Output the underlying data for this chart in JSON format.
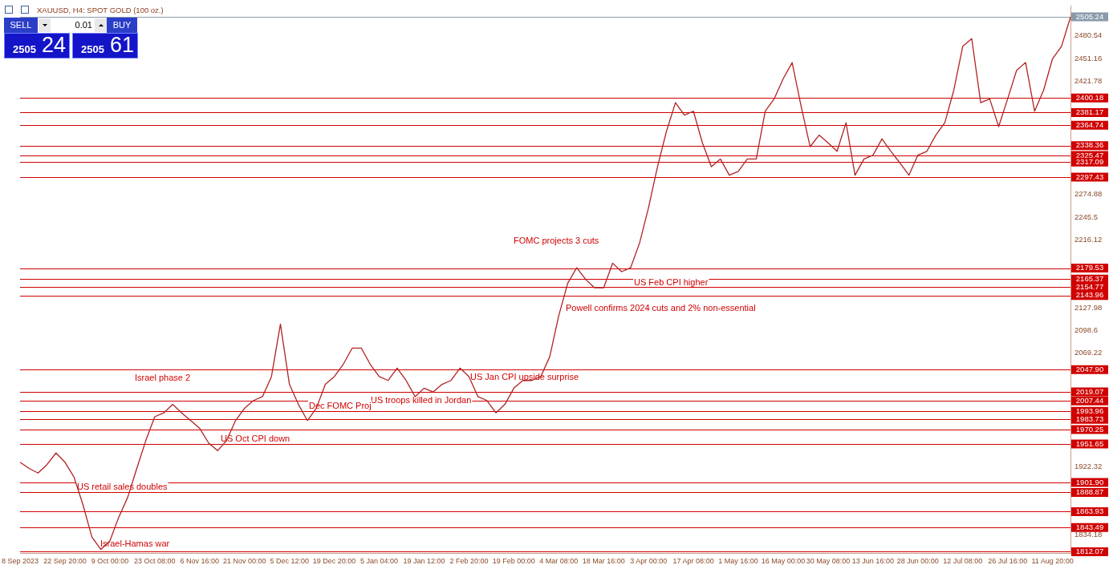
{
  "chart_data": {
    "type": "line",
    "title": "XAUUSD, H4:  SPOT GOLD (100 oz.)",
    "categories": [
      "8 Sep 2023",
      null,
      null,
      null,
      null,
      "22 Sep 20:00",
      null,
      null,
      null,
      null,
      "9 Oct 00:00",
      null,
      null,
      null,
      null,
      "23 Oct 08:00",
      null,
      null,
      null,
      null,
      "6 Nov 16:00",
      null,
      null,
      null,
      null,
      "21 Nov 00:00",
      null,
      null,
      null,
      null,
      "5 Dec 12:00",
      null,
      null,
      null,
      null,
      "19 Dec 20:00",
      null,
      null,
      null,
      null,
      "5 Jan 04:00",
      null,
      null,
      null,
      null,
      "19 Jan 12:00",
      null,
      null,
      null,
      null,
      "2 Feb 20:00",
      null,
      null,
      null,
      null,
      "19 Feb 00:00",
      null,
      null,
      null,
      null,
      "4 Mar 08:00",
      null,
      null,
      null,
      null,
      "18 Mar 16:00",
      null,
      null,
      null,
      null,
      "3 Apr 00:00",
      null,
      null,
      null,
      null,
      "17 Apr 08:00",
      null,
      null,
      null,
      null,
      "1 May 16:00",
      null,
      null,
      null,
      null,
      "16 May 00:00",
      null,
      null,
      null,
      null,
      "30 May 08:00",
      null,
      null,
      null,
      null,
      "13 Jun 16:00",
      null,
      null,
      null,
      null,
      "28 Jun 00:00",
      null,
      null,
      null,
      null,
      "12 Jul 08:00",
      null,
      null,
      null,
      null,
      "26 Jul 16:00",
      null,
      null,
      null,
      null,
      "11 Aug 20:00",
      null,
      null
    ],
    "series": [
      {
        "color": "#b22222",
        "values": [
          1928,
          1920,
          1914,
          1925,
          1940,
          1928,
          1909,
          1873,
          1831,
          1815,
          1826,
          1857,
          1883,
          1920,
          1956,
          1987,
          1992,
          2003,
          1992,
          1982,
          1972,
          1953,
          1943,
          1956,
          1982,
          1998,
          2008,
          2013,
          2039,
          2107,
          2029,
          2003,
          1982,
          1998,
          2029,
          2039,
          2055,
          2076,
          2076,
          2055,
          2039,
          2034,
          2050,
          2034,
          2013,
          2024,
          2019,
          2029,
          2034,
          2050,
          2039,
          2013,
          2008,
          1992,
          2003,
          2024,
          2034,
          2034,
          2039,
          2065,
          2118,
          2160,
          2180,
          2165,
          2154,
          2154,
          2186,
          2175,
          2180,
          2212,
          2258,
          2311,
          2357,
          2394,
          2378,
          2383,
          2342,
          2311,
          2321,
          2300,
          2305,
          2321,
          2321,
          2383,
          2399,
          2425,
          2446,
          2389,
          2337,
          2352,
          2342,
          2331,
          2368,
          2300,
          2321,
          2326,
          2347,
          2331,
          2316,
          2300,
          2326,
          2331,
          2352,
          2368,
          2410,
          2467,
          2477,
          2394,
          2399,
          2363,
          2399,
          2436,
          2446,
          2383,
          2410,
          2451,
          2467,
          2505
        ]
      }
    ],
    "ylim": [
      1810.2,
      2519.1
    ],
    "yticks": [
      1834.18,
      1922.32,
      2069.22,
      2098.6,
      2127.98,
      2216.12,
      2245.5,
      2274.88,
      2421.78,
      2451.16,
      2480.54
    ],
    "ref_lines": [
      {
        "axis": "y",
        "value": 2505.24,
        "label": "2505.24",
        "color": "#8a9aab"
      },
      {
        "axis": "y",
        "value": 2400.18,
        "label": "2400.18",
        "color": "#d00000"
      },
      {
        "axis": "y",
        "value": 2381.17,
        "label": "2381.17",
        "color": "#d00000"
      },
      {
        "axis": "y",
        "value": 2364.74,
        "label": "2364.74",
        "color": "#d00000"
      },
      {
        "axis": "y",
        "value": 2338.36,
        "label": "2338.36",
        "color": "#d00000"
      },
      {
        "axis": "y",
        "value": 2325.47,
        "label": "2325.47",
        "color": "#d00000"
      },
      {
        "axis": "y",
        "value": 2317.09,
        "label": "2317.09",
        "color": "#d00000"
      },
      {
        "axis": "y",
        "value": 2297.43,
        "label": "2297.43",
        "color": "#d00000"
      },
      {
        "axis": "y",
        "value": 2179.53,
        "label": "2179.53",
        "color": "#d00000"
      },
      {
        "axis": "y",
        "value": 2165.37,
        "label": "2165.37",
        "color": "#d00000"
      },
      {
        "axis": "y",
        "value": 2154.77,
        "label": "2154.77",
        "color": "#d00000"
      },
      {
        "axis": "y",
        "value": 2143.96,
        "label": "2143.96",
        "color": "#d00000"
      },
      {
        "axis": "y",
        "value": 2047.9,
        "label": "2047.90",
        "color": "#d00000"
      },
      {
        "axis": "y",
        "value": 2019.07,
        "label": "2019.07",
        "color": "#d00000"
      },
      {
        "axis": "y",
        "value": 2007.44,
        "label": "2007.44",
        "color": "#d00000"
      },
      {
        "axis": "y",
        "value": 1993.96,
        "label": "1993.96",
        "color": "#d00000"
      },
      {
        "axis": "y",
        "value": 1983.73,
        "label": "1983.73",
        "color": "#d00000"
      },
      {
        "axis": "y",
        "value": 1970.25,
        "label": "1970.25",
        "color": "#d00000"
      },
      {
        "axis": "y",
        "value": 1951.65,
        "label": "1951.65",
        "color": "#d00000"
      },
      {
        "axis": "y",
        "value": 1901.9,
        "label": "1901.90",
        "color": "#d00000"
      },
      {
        "axis": "y",
        "value": 1888.87,
        "label": "1888.87",
        "color": "#d00000"
      },
      {
        "axis": "y",
        "value": 1863.93,
        "label": "1863.93",
        "color": "#d00000"
      },
      {
        "axis": "y",
        "value": 1843.49,
        "label": "1843.49",
        "color": "#d00000"
      },
      {
        "axis": "y",
        "value": 1812.07,
        "label": "1812.07",
        "color": "#d00000"
      }
    ],
    "annotations": [
      "SELL",
      "0.01",
      "BUY",
      "2505 24",
      "2505 61",
      "FOMC projects 3 cuts",
      "US Feb CPI higher",
      "Powell confirms 2024 cuts and 2% non-essential",
      "US Jan CPI upside surprise",
      "US troops killed in Jordan",
      "Israel phase 2",
      "Dec FOMC Proj",
      "US Oct CPI down",
      "US retail sales doubles",
      "Israel-Hamas war"
    ],
    "grid": false,
    "legend": false,
    "marker": "none",
    "line_style": "solid"
  }
}
